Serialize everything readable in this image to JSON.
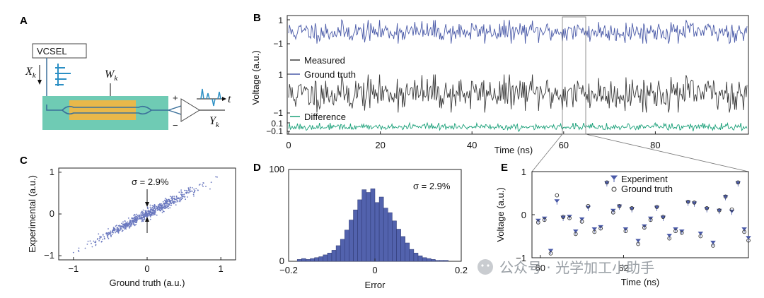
{
  "panels": {
    "a": "A",
    "b": "B",
    "c": "C",
    "d": "D",
    "e": "E"
  },
  "diagram_a": {
    "source": "VCSEL",
    "input": "X",
    "input_sub": "k",
    "weight": "W",
    "weight_sub": "k",
    "output": "Y",
    "output_sub": "k",
    "plus": "+",
    "minus": "−",
    "axis": "t",
    "colors": {
      "chip": "#6fcbb4",
      "modulator": "#e8b84a",
      "waveguide": "#3a6f9a",
      "pulse": "#2b8fc4"
    }
  },
  "watermark": "公众号 · 光学加工小助手",
  "chart_data": [
    {
      "id": "B",
      "type": "line",
      "xlabel": "Time (ns)",
      "ylabel": "Voltage (a.u.)",
      "xlim": [
        0,
        100
      ],
      "xticks": [
        0,
        20,
        40,
        60,
        80
      ],
      "series": [
        {
          "name": "Ground truth",
          "color": "#4a5aa8",
          "range": [
            -1,
            1
          ],
          "yticks": [
            "1",
            "−1"
          ],
          "amp": 0.62,
          "seed": 11
        },
        {
          "name": "Measured",
          "color": "#3a3a3a",
          "range": [
            -1,
            1
          ],
          "yticks": [
            "1",
            "−1"
          ],
          "amp": 0.62,
          "seed": 23
        },
        {
          "name": "Difference",
          "color": "#1aa079",
          "range": [
            -0.1,
            0.1
          ],
          "yticks": [
            "0.1",
            "−0.1"
          ],
          "amp": 0.06,
          "seed": 37
        }
      ],
      "zoom_window": [
        60,
        65
      ]
    },
    {
      "id": "C",
      "type": "scatter",
      "xlabel": "Ground truth (a.u.)",
      "ylabel": "Experimental (a.u.)",
      "xlim": [
        -1.2,
        1.2
      ],
      "ylim": [
        -1.1,
        1.1
      ],
      "xticks": [
        "−1",
        "0",
        "1"
      ],
      "yticks": [
        "1",
        "0",
        "−1"
      ],
      "xtick_values": [
        -1,
        0,
        1
      ],
      "ytick_values": [
        1,
        0,
        -1
      ],
      "color": "#6a78bf",
      "slope": 0.92,
      "sigma_label": "σ = 2.9%",
      "n_points": 700
    },
    {
      "id": "D",
      "type": "bar",
      "xlabel": "Error",
      "ylabel": "",
      "xlim": [
        -0.2,
        0.2
      ],
      "ylim": [
        0,
        100
      ],
      "xticks": [
        "−0.2",
        "0",
        "0.2"
      ],
      "xtick_values": [
        -0.2,
        0,
        0.2
      ],
      "yticks": [
        "100",
        "0"
      ],
      "ytick_values": [
        100,
        0
      ],
      "bin_width": 0.01,
      "bin_start": -0.18,
      "values": [
        2,
        3,
        2,
        3,
        4,
        5,
        7,
        9,
        12,
        17,
        24,
        34,
        45,
        56,
        67,
        78,
        75,
        79,
        64,
        70,
        58,
        53,
        44,
        35,
        27,
        20,
        13,
        9,
        6,
        4,
        3,
        2,
        1,
        1,
        1,
        0
      ],
      "color": "#5262ad",
      "sigma_label": "σ = 2.9%"
    },
    {
      "id": "E",
      "type": "scatter",
      "xlabel": "Time (ns)",
      "ylabel": "Voltage (a.u.)",
      "xlim": [
        59.8,
        65
      ],
      "ylim": [
        -1,
        1
      ],
      "xticks": [
        "60",
        "62"
      ],
      "xtick_values": [
        60,
        62
      ],
      "yticks": [
        "1",
        "0",
        "−1"
      ],
      "ytick_values": [
        1,
        0,
        -1
      ],
      "series": [
        {
          "name": "Experiment",
          "marker": "tri",
          "color": "#4a5aa8"
        },
        {
          "name": "Ground truth",
          "marker": "circle",
          "color": "#333333"
        }
      ],
      "x": [
        59.95,
        60.1,
        60.25,
        60.4,
        60.55,
        60.7,
        60.85,
        61.0,
        61.15,
        61.3,
        61.45,
        61.6,
        61.75,
        61.9,
        62.05,
        62.2,
        62.35,
        62.5,
        62.65,
        62.8,
        62.95,
        63.1,
        63.25,
        63.4,
        63.55,
        63.7,
        63.85,
        64.0,
        64.15,
        64.3,
        64.45,
        64.6,
        64.75,
        64.9,
        65.0
      ],
      "ground_truth": [
        -0.18,
        -0.12,
        -0.9,
        0.45,
        -0.05,
        -0.08,
        -0.45,
        -0.16,
        0.2,
        -0.4,
        -0.32,
        0.75,
        0.05,
        0.2,
        -0.38,
        0.15,
        -0.68,
        -0.3,
        -0.12,
        0.18,
        -0.05,
        -0.55,
        -0.38,
        -0.42,
        0.3,
        0.28,
        -0.5,
        0.15,
        -0.72,
        0.1,
        0.42,
        0.12,
        0.75,
        -0.4,
        -0.6
      ],
      "experiment": [
        -0.15,
        -0.1,
        -0.85,
        0.3,
        -0.08,
        -0.06,
        -0.4,
        -0.12,
        0.15,
        -0.35,
        -0.3,
        0.72,
        0.08,
        0.18,
        -0.35,
        0.12,
        -0.62,
        -0.28,
        -0.1,
        0.15,
        -0.08,
        -0.5,
        -0.35,
        -0.4,
        0.27,
        0.25,
        -0.45,
        0.12,
        -0.66,
        0.08,
        0.4,
        0.06,
        0.72,
        -0.35,
        -0.55
      ]
    }
  ]
}
